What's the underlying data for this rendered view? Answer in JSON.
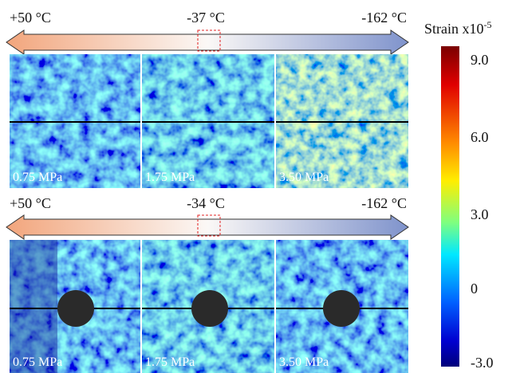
{
  "rows": [
    {
      "temperatures": [
        "+50 °C",
        "-37 °C",
        "-162 °C"
      ],
      "panels": [
        "0.75 MPa",
        "1.75 MPa",
        "3.50 MPa"
      ]
    },
    {
      "temperatures": [
        "+50 °C",
        "-34 °C",
        "-162 °C"
      ],
      "panels": [
        "0.75 MPa",
        "1.75 MPa",
        "3.50 MPa"
      ]
    }
  ],
  "colorbar": {
    "title": "Strain x10",
    "exponent": "-5",
    "ticks": [
      "9.0",
      "6.0",
      "3.0",
      "0",
      "-3.0"
    ]
  }
}
